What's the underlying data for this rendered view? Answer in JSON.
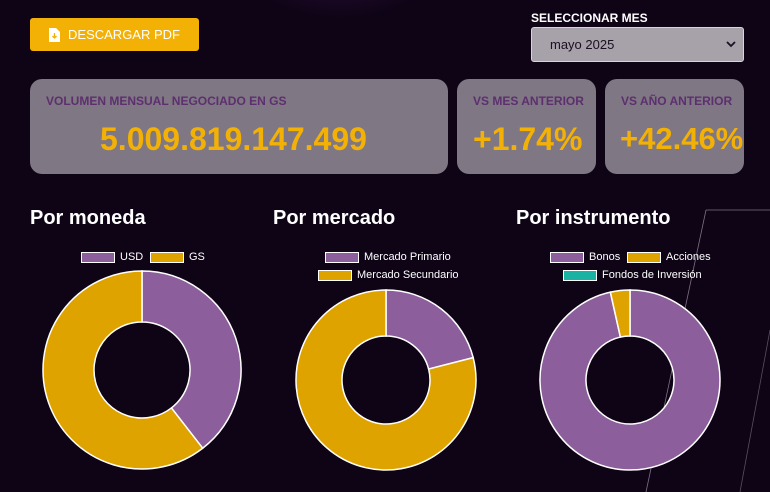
{
  "header": {
    "download_button_label": "DESCARGAR PDF",
    "download_icon": "pdf-file-icon",
    "month_selector_label": "SELECCIONAR MES",
    "month_selected": "mayo 2025"
  },
  "kpis": {
    "volume": {
      "title": "VOLUMEN MENSUAL NEGOCIADO EN GS",
      "value": "5.009.819.147.499"
    },
    "vs_previous_month": {
      "title": "VS MES ANTERIOR",
      "value": "+1.74%"
    },
    "vs_previous_year": {
      "title": "VS AÑO ANTERIOR",
      "value": "+42.46%"
    }
  },
  "colors": {
    "accent": "#f3b106",
    "purple": "#8d5e9c",
    "gold": "#dfa300",
    "teal": "#19b2a3",
    "card": "#7f7783",
    "background": "#0e0416"
  },
  "chart_data": [
    {
      "type": "pie",
      "title": "Por moneda",
      "categories": [
        "USD",
        "GS"
      ],
      "values": [
        39.5,
        60.5
      ],
      "colors": [
        "#8d5e9c",
        "#dfa300"
      ],
      "legend": "top"
    },
    {
      "type": "pie",
      "title": "Por mercado",
      "categories": [
        "Mercado Primario",
        "Mercado Secundario"
      ],
      "values": [
        21,
        79
      ],
      "colors": [
        "#8d5e9c",
        "#dfa300"
      ],
      "legend": "top"
    },
    {
      "type": "pie",
      "title": "Por instrumento",
      "categories": [
        "Bonos",
        "Acciones",
        "Fondos de Inversión"
      ],
      "values": [
        96.5,
        3.5,
        0
      ],
      "colors": [
        "#8d5e9c",
        "#dfa300",
        "#19b2a3"
      ],
      "legend": "top"
    }
  ]
}
